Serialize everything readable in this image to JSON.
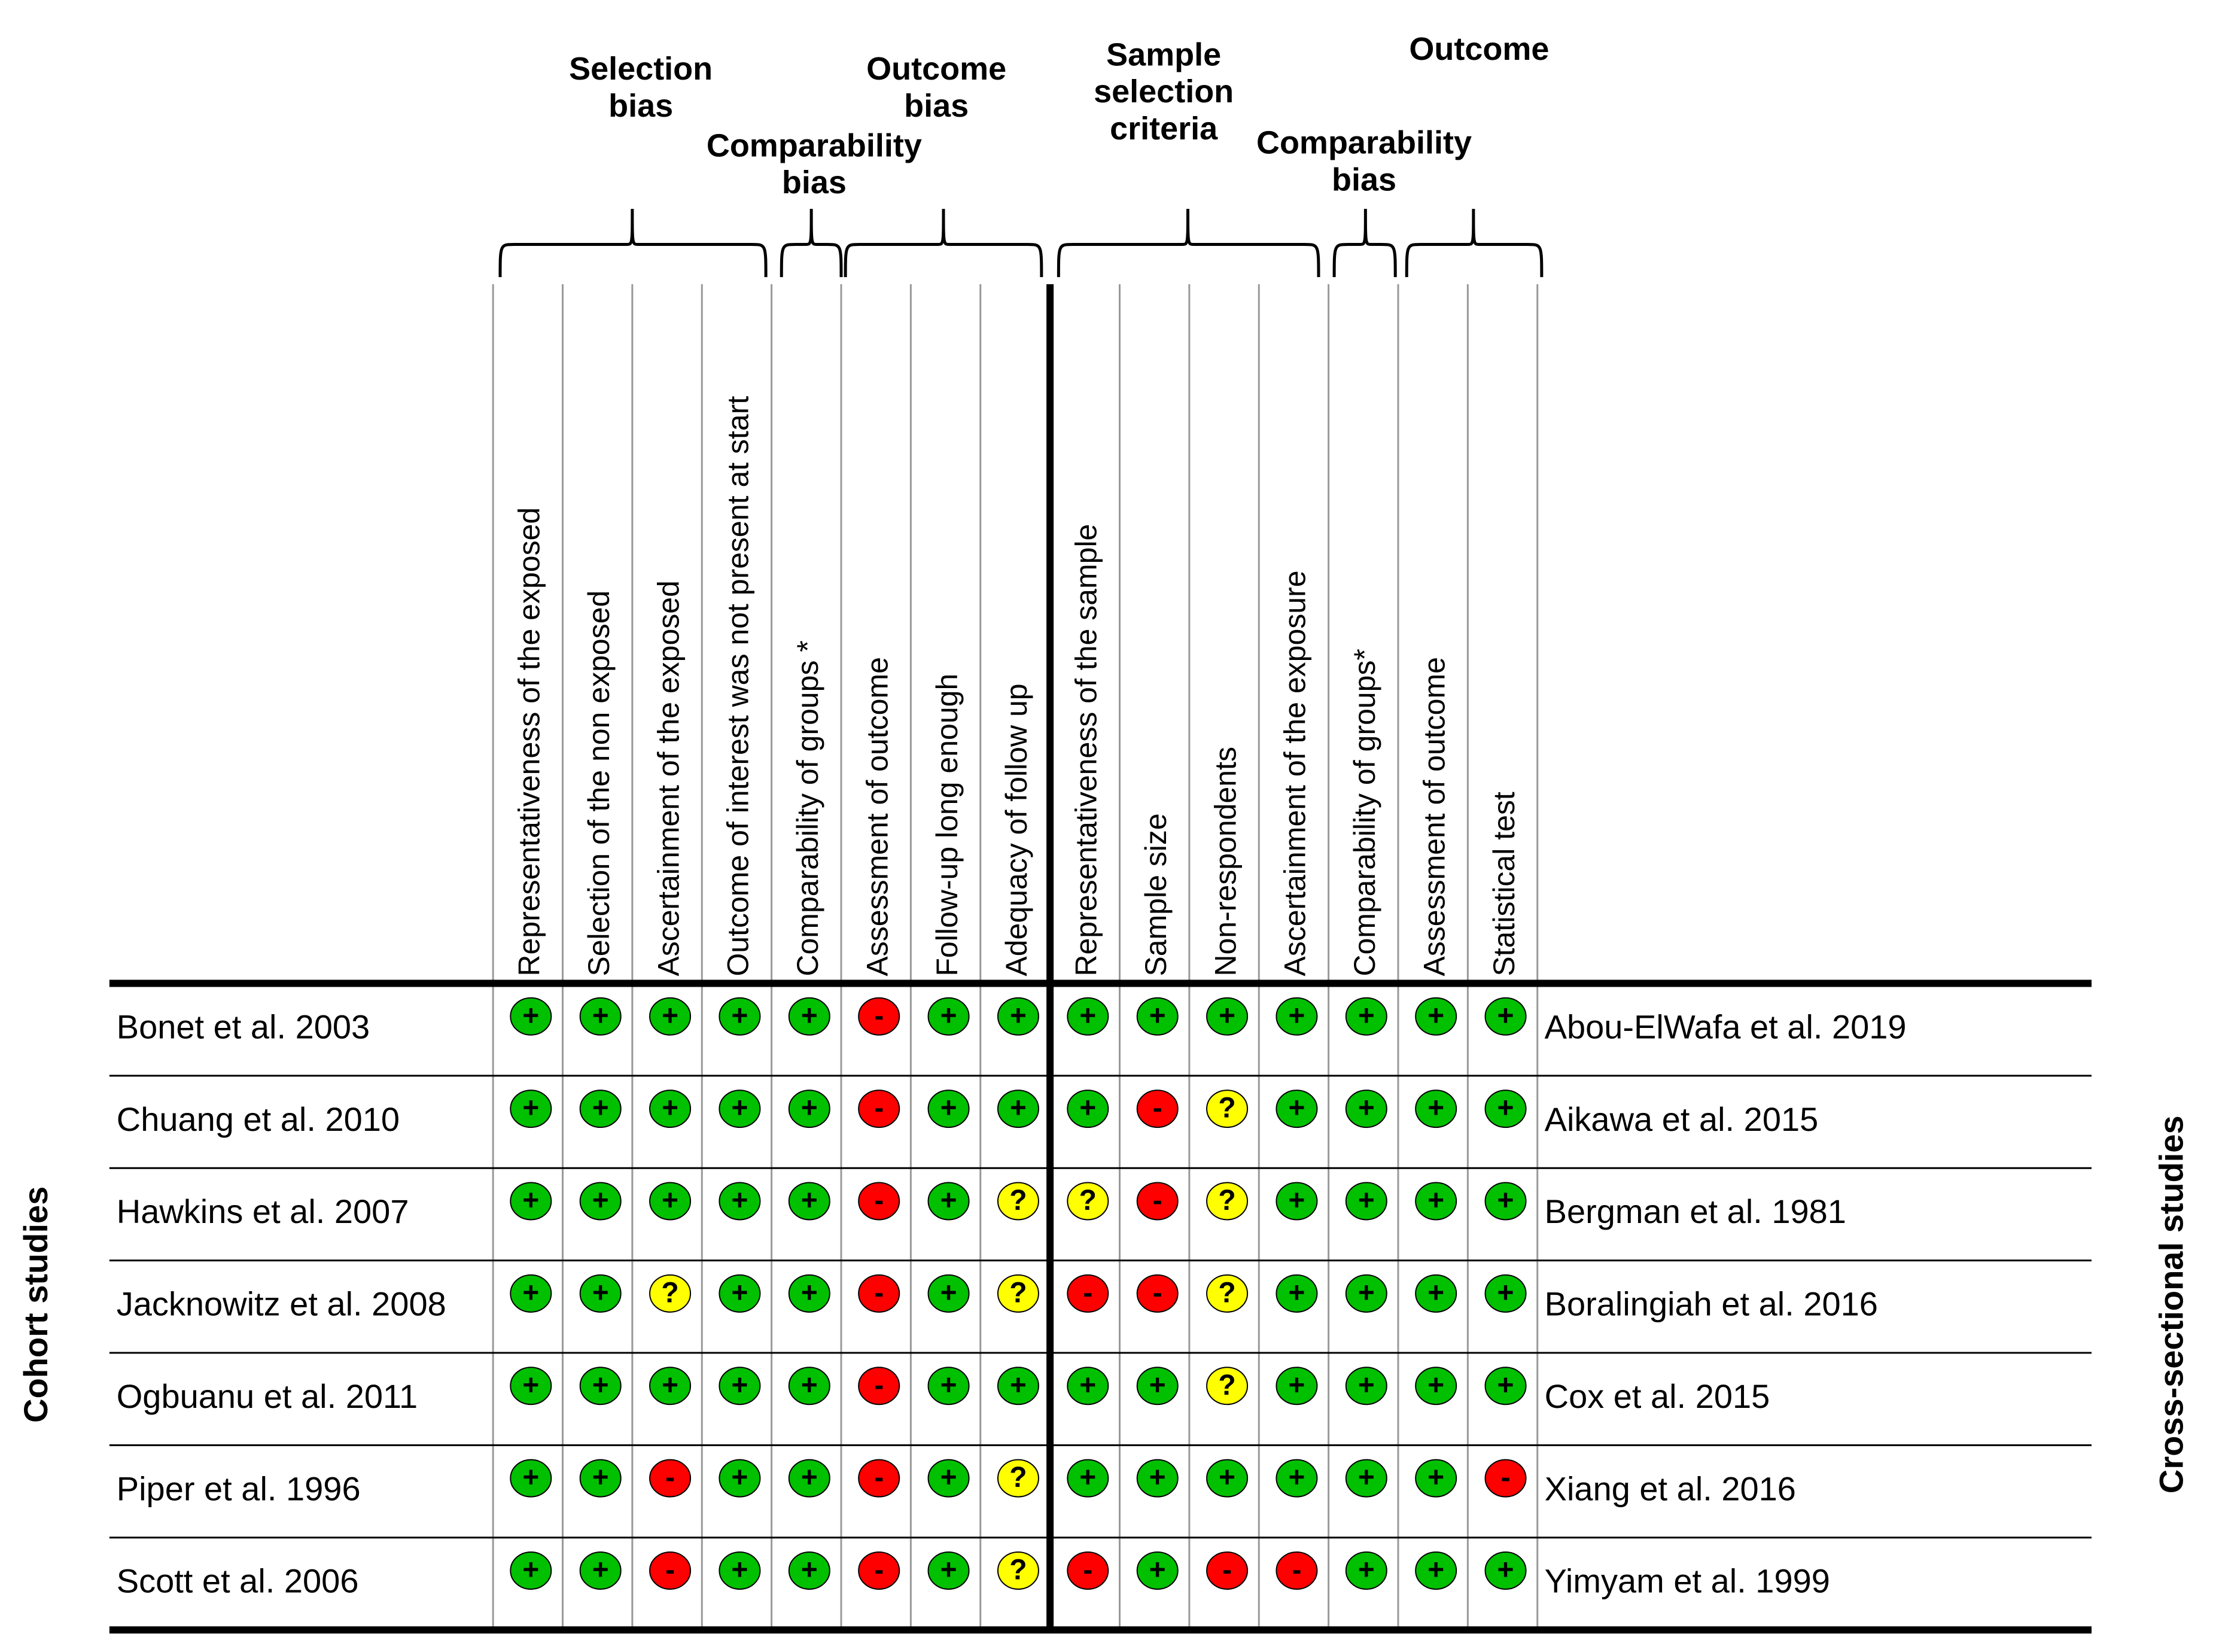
{
  "title": "",
  "legend": {
    "plus": "+",
    "minus": "-",
    "unclear": "?"
  },
  "colors": {
    "plus": "#00c000",
    "minus": "#ff0000",
    "unclear": "#ffff00",
    "line": "#000000",
    "grid": "#999999"
  },
  "groups": [
    {
      "lines": [
        "Selection",
        "bias"
      ]
    },
    {
      "lines": [
        "Comparability",
        "bias"
      ]
    },
    {
      "lines": [
        "Outcome",
        "bias"
      ]
    },
    {
      "lines": [
        "Sample",
        "selection",
        "criteria"
      ]
    },
    {
      "lines": [
        "Comparability",
        "bias"
      ]
    },
    {
      "lines": [
        "Outcome"
      ]
    }
  ],
  "columns": [
    "Representativeness of the exposed",
    "Selection of the non exposed",
    "Ascertainment of the exposed",
    "Outcome of interest was not present at start",
    "Comparability of groups *",
    "Assessment of outcome",
    "Follow-up long enough",
    "Adequacy of follow up",
    "Representativeness of the sample",
    "Sample size",
    "Non-respondents",
    "Ascertainment of the exposure",
    "Comparability of groups*",
    "Assessment of outcome",
    "Statistical test"
  ],
  "left_label": "Cohort studies",
  "right_label": "Cross-sectional studies",
  "rows": [
    {
      "cohort": "Bonet et al. 2003",
      "cross": "Abou-ElWafa et al. 2019",
      "ratings": [
        "plus",
        "plus",
        "plus",
        "plus",
        "plus",
        "minus",
        "plus",
        "plus",
        "plus",
        "plus",
        "plus",
        "plus",
        "plus",
        "plus",
        "plus"
      ]
    },
    {
      "cohort": "Chuang et al. 2010",
      "cross": "Aikawa et al. 2015",
      "ratings": [
        "plus",
        "plus",
        "plus",
        "plus",
        "plus",
        "minus",
        "plus",
        "plus",
        "plus",
        "minus",
        "unclear",
        "plus",
        "plus",
        "plus",
        "plus"
      ]
    },
    {
      "cohort": "Hawkins et al. 2007",
      "cross": "Bergman et al. 1981",
      "ratings": [
        "plus",
        "plus",
        "plus",
        "plus",
        "plus",
        "minus",
        "plus",
        "unclear",
        "unclear",
        "minus",
        "unclear",
        "plus",
        "plus",
        "plus",
        "plus"
      ]
    },
    {
      "cohort": "Jacknowitz et al. 2008",
      "cross": "Boralingiah et al. 2016",
      "ratings": [
        "plus",
        "plus",
        "unclear",
        "plus",
        "plus",
        "minus",
        "plus",
        "unclear",
        "minus",
        "minus",
        "unclear",
        "plus",
        "plus",
        "plus",
        "plus"
      ]
    },
    {
      "cohort": "Ogbuanu et al. 2011",
      "cross": "Cox et al. 2015",
      "ratings": [
        "plus",
        "plus",
        "plus",
        "plus",
        "plus",
        "minus",
        "plus",
        "plus",
        "plus",
        "plus",
        "unclear",
        "plus",
        "plus",
        "plus",
        "plus"
      ]
    },
    {
      "cohort": "Piper et al. 1996",
      "cross": "Xiang et al. 2016",
      "ratings": [
        "plus",
        "plus",
        "minus",
        "plus",
        "plus",
        "minus",
        "plus",
        "unclear",
        "plus",
        "plus",
        "plus",
        "plus",
        "plus",
        "plus",
        "minus"
      ]
    },
    {
      "cohort": "Scott et al. 2006",
      "cross": "Yimyam et al. 1999",
      "ratings": [
        "plus",
        "plus",
        "minus",
        "plus",
        "plus",
        "minus",
        "plus",
        "unclear",
        "minus",
        "plus",
        "minus",
        "minus",
        "plus",
        "plus",
        "plus"
      ]
    }
  ]
}
